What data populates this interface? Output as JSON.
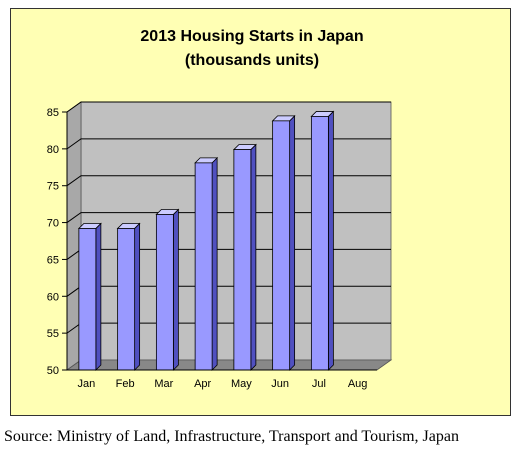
{
  "chart_data": {
    "type": "bar",
    "title": [
      "2013 Housing Starts in Japan",
      "(thousands units)"
    ],
    "categories": [
      "Jan",
      "Feb",
      "Mar",
      "Apr",
      "May",
      "Jun",
      "Jul",
      "Aug"
    ],
    "values": [
      69.2,
      69.2,
      71.1,
      78.1,
      79.9,
      83.8,
      84.4,
      null
    ],
    "ylim": [
      50,
      85
    ],
    "yticks": [
      50,
      55,
      60,
      65,
      70,
      75,
      80,
      85
    ],
    "grid": true,
    "legend": "none",
    "colors": {
      "frame_background": "#ffffb4",
      "plot_wall": "#c0c0c0",
      "floor": "#888888",
      "bar_front": "#9999ff",
      "bar_side": "#5050c0",
      "bar_top": "#ccccff",
      "gridline": "#000000"
    }
  },
  "source_note": "Source: Ministry of Land, Infrastructure, Transport and Tourism, Japan"
}
